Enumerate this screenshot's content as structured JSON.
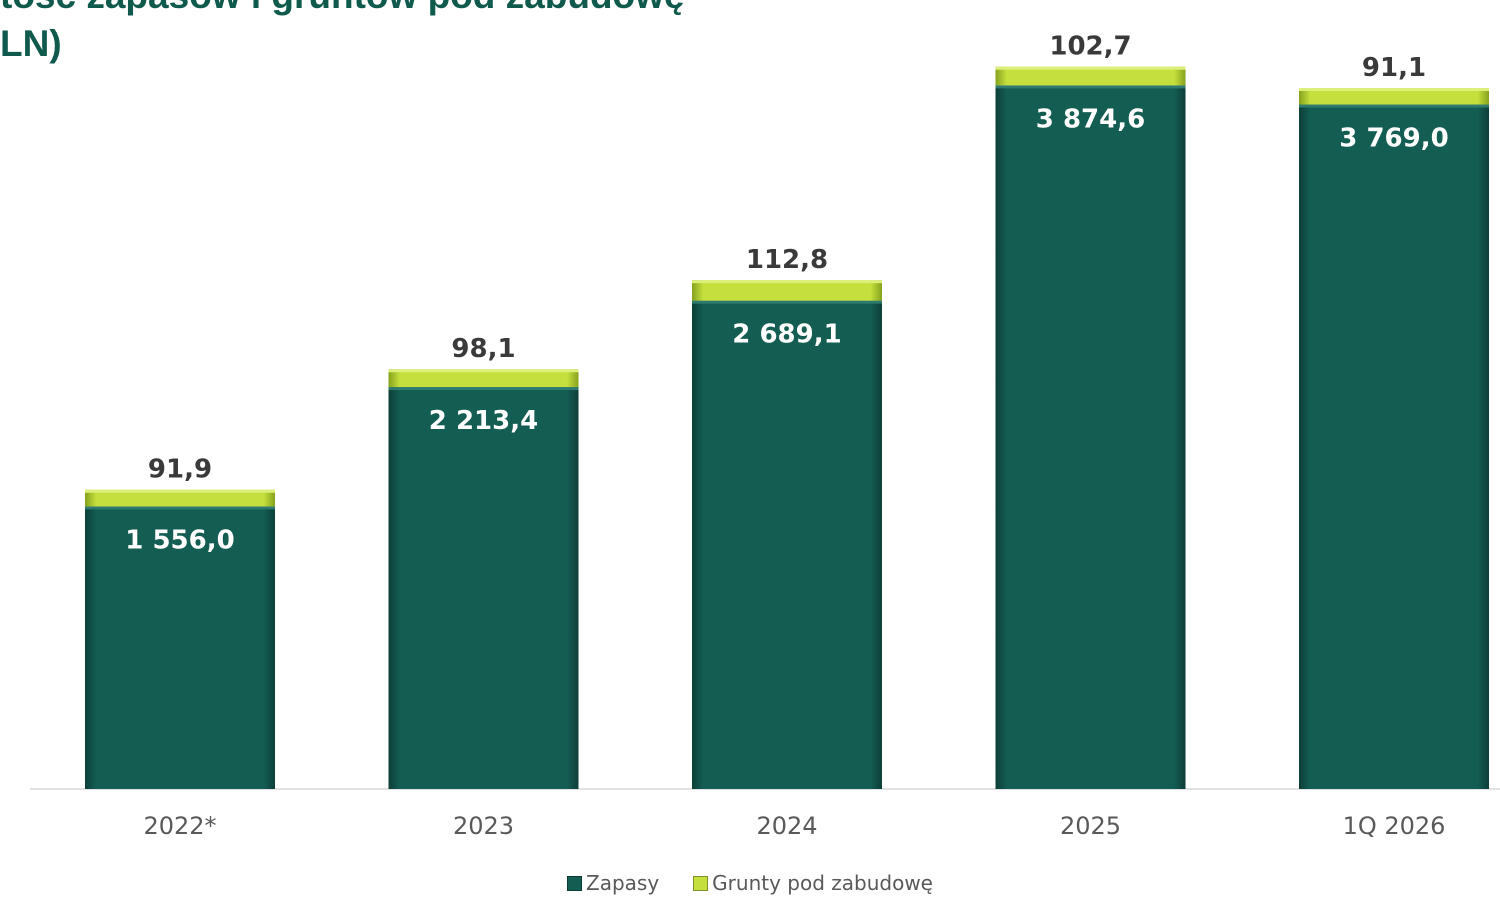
{
  "title": {
    "line1": "tość zapasów i gruntów pod zabudowę",
    "line2": "LN)"
  },
  "colors": {
    "zapasy": "#145d53",
    "grunty": "#c5e03d",
    "title": "#10594d",
    "axis_text": "#595959"
  },
  "chart_data": {
    "type": "bar",
    "stacked": true,
    "categories": [
      "2022*",
      "2023",
      "2024",
      "2025",
      "1Q 2026"
    ],
    "series": [
      {
        "name": "Zapasy",
        "values": [
          1556.0,
          2213.4,
          2689.1,
          3874.6,
          3769.0
        ],
        "labels": [
          "1 556,0",
          "2 213,4",
          "2 689,1",
          "3 874,6",
          "3 769,0"
        ]
      },
      {
        "name": "Grunty pod zabudowę",
        "values": [
          91.9,
          98.1,
          112.8,
          102.7,
          91.1
        ],
        "labels": [
          "91,9",
          "98,1",
          "112,8",
          "102,7",
          "91,1"
        ]
      }
    ],
    "legend_position": "bottom",
    "grid": false
  }
}
